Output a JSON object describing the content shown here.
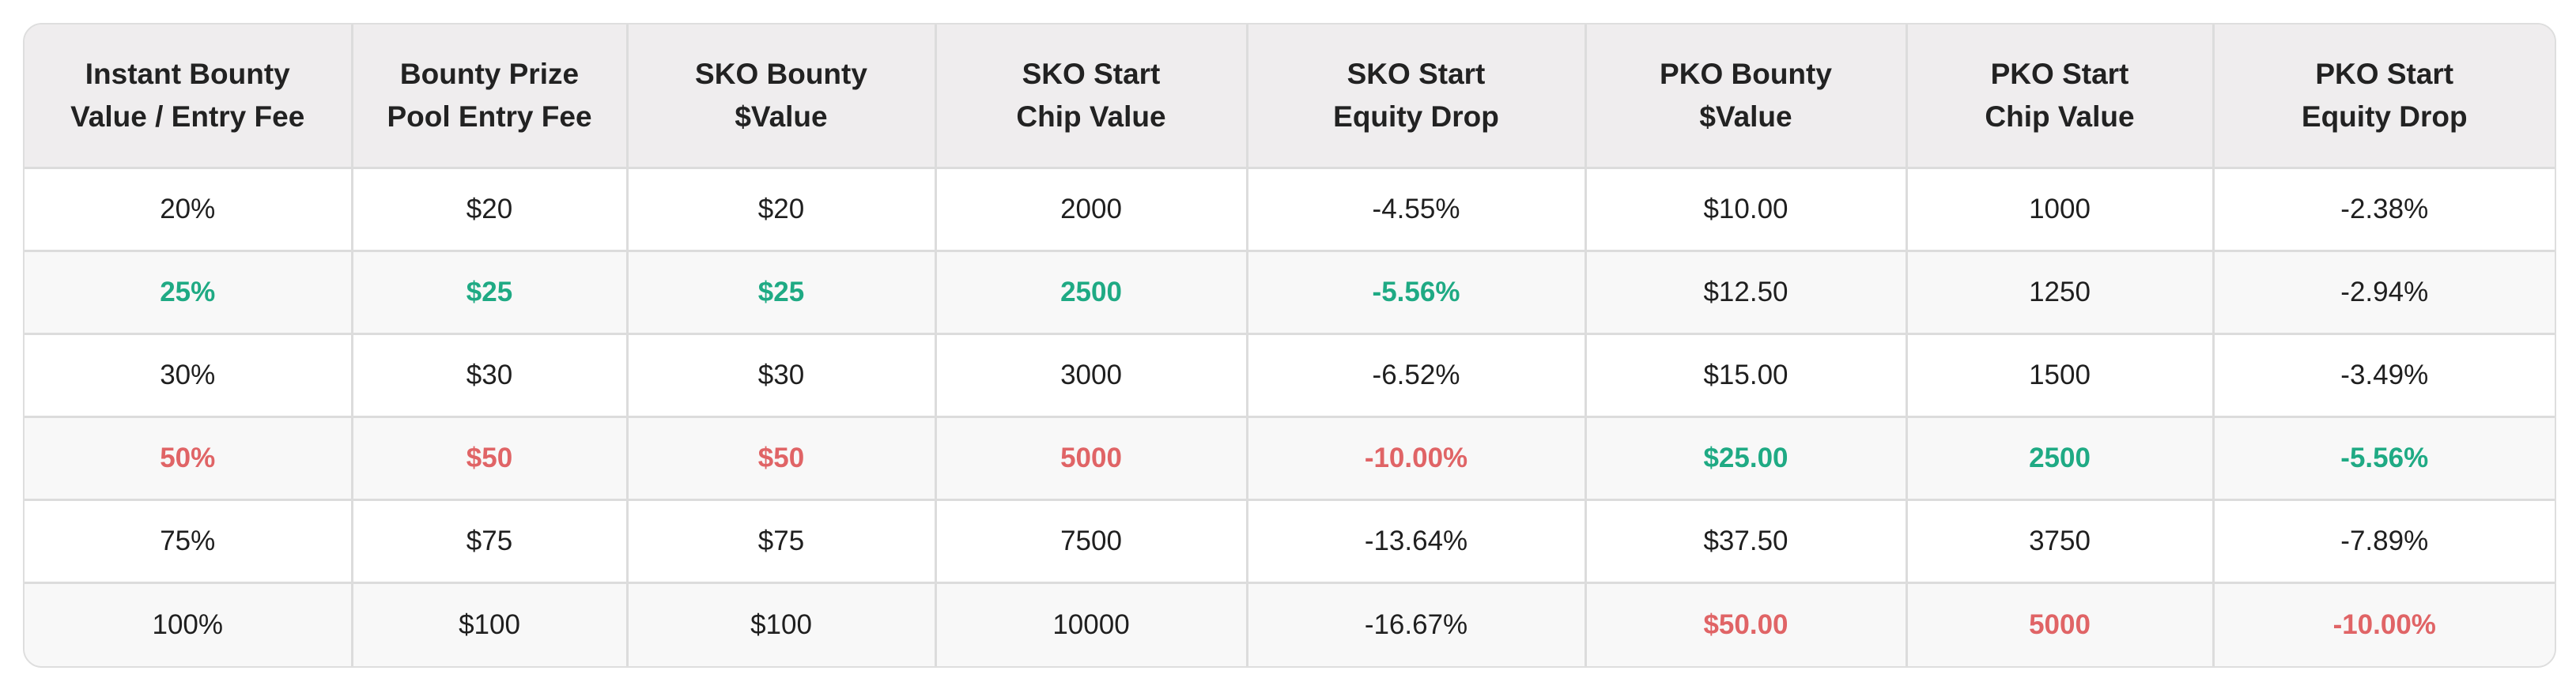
{
  "colors": {
    "green_highlight": "#1faa84",
    "red_highlight": "#e06466",
    "header_bg": "#efedee",
    "stripe_bg": "#f8f8f8",
    "border": "#dcdcdc"
  },
  "table": {
    "headers": [
      [
        "Instant Bounty",
        "Value / Entry Fee"
      ],
      [
        "Bounty Prize",
        "Pool Entry Fee"
      ],
      [
        "SKO Bounty",
        "$Value"
      ],
      [
        "SKO Start",
        "Chip Value"
      ],
      [
        "SKO Start",
        "Equity Drop"
      ],
      [
        "PKO Bounty",
        "$Value"
      ],
      [
        "PKO Start",
        "Chip Value"
      ],
      [
        "PKO Start",
        "Equity Drop"
      ]
    ],
    "rows": [
      {
        "cells": [
          "20%",
          "$20",
          "$20",
          "2000",
          "-4.55%",
          "$10.00",
          "1000",
          "-2.38%"
        ],
        "highlight": [
          "",
          "",
          "",
          "",
          "",
          "",
          "",
          ""
        ]
      },
      {
        "cells": [
          "25%",
          "$25",
          "$25",
          "2500",
          "-5.56%",
          "$12.50",
          "1250",
          "-2.94%"
        ],
        "highlight": [
          "green",
          "green",
          "green",
          "green",
          "green",
          "",
          "",
          ""
        ]
      },
      {
        "cells": [
          "30%",
          "$30",
          "$30",
          "3000",
          "-6.52%",
          "$15.00",
          "1500",
          "-3.49%"
        ],
        "highlight": [
          "",
          "",
          "",
          "",
          "",
          "",
          "",
          ""
        ]
      },
      {
        "cells": [
          "50%",
          "$50",
          "$50",
          "5000",
          "-10.00%",
          "$25.00",
          "2500",
          "-5.56%"
        ],
        "highlight": [
          "red",
          "red",
          "red",
          "red",
          "red",
          "green",
          "green",
          "green"
        ]
      },
      {
        "cells": [
          "75%",
          "$75",
          "$75",
          "7500",
          "-13.64%",
          "$37.50",
          "3750",
          "-7.89%"
        ],
        "highlight": [
          "",
          "",
          "",
          "",
          "",
          "",
          "",
          ""
        ]
      },
      {
        "cells": [
          "100%",
          "$100",
          "$100",
          "10000",
          "-16.67%",
          "$50.00",
          "5000",
          "-10.00%"
        ],
        "highlight": [
          "",
          "",
          "",
          "",
          "",
          "red",
          "red",
          "red"
        ]
      }
    ]
  }
}
